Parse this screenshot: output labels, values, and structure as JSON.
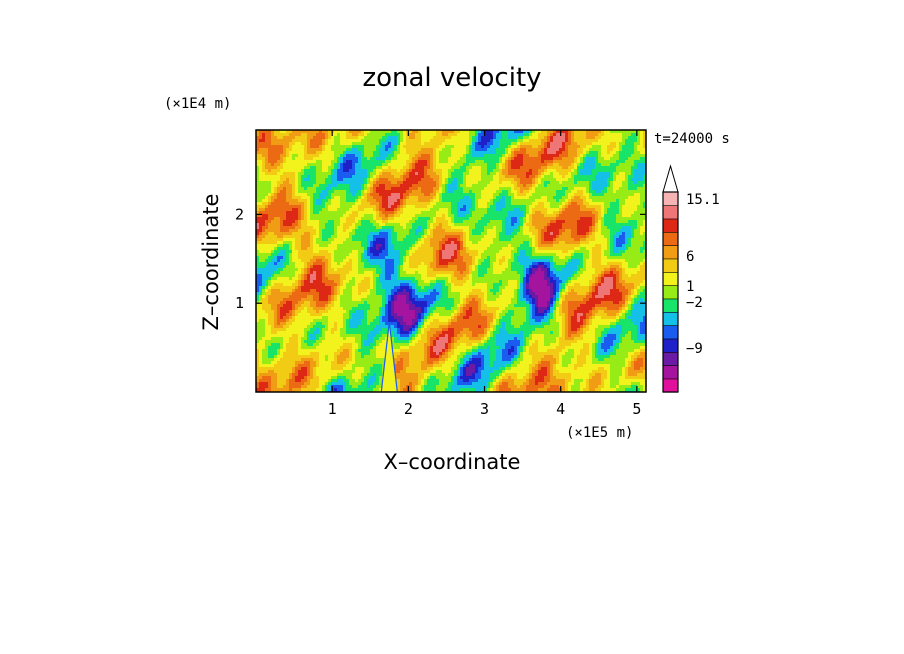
{
  "chart_data": {
    "type": "heatmap",
    "title": "zonal velocity",
    "xlabel": "X–coordinate",
    "ylabel": "Z–coordinate",
    "x_scale_label": "(×1E5 m)",
    "y_scale_label": "(×1E4 m)",
    "time_label": "t=24000 s",
    "xlim": [
      0,
      5.12
    ],
    "ylim": [
      0,
      2.95
    ],
    "x_ticks": [
      1,
      2,
      3,
      4,
      5
    ],
    "x_tick_labels": [
      "1",
      "2",
      "3",
      "4",
      "5"
    ],
    "y_ticks": [
      1,
      2
    ],
    "y_tick_labels": [
      "1",
      "2"
    ],
    "colorbar": {
      "levels_labeled": [
        "15.1",
        "6",
        "1",
        "−2",
        "−9"
      ],
      "colors": [
        "#e0109c",
        "#a4149e",
        "#6a1aa4",
        "#1e20c8",
        "#1a5cf0",
        "#14c0e8",
        "#18e46a",
        "#96ec14",
        "#f2f21c",
        "#f2cc14",
        "#f09c14",
        "#ec6a14",
        "#dc2814",
        "#ee7676",
        "#f6b4b4"
      ]
    },
    "grid": false
  }
}
